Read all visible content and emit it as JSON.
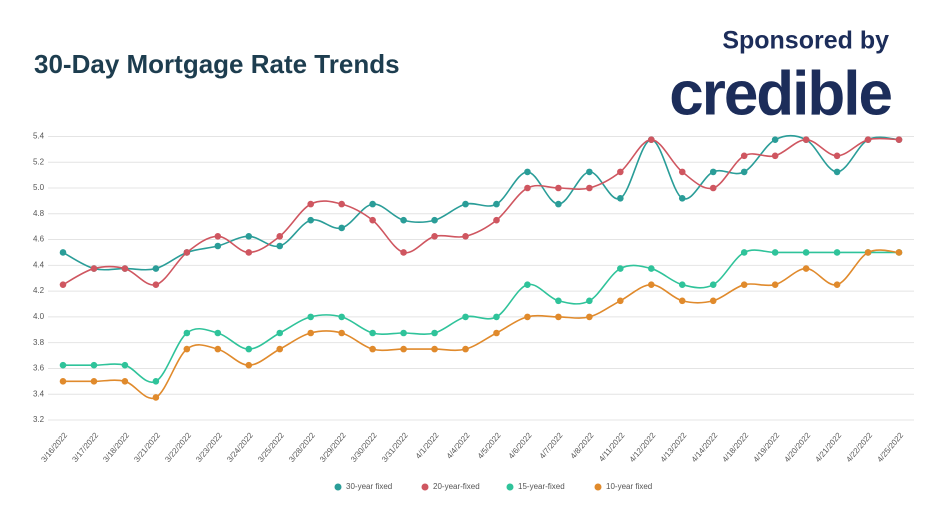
{
  "header": {
    "sponsor": "Sponsored by",
    "brand": "credible"
  },
  "chart_data": {
    "type": "line",
    "title": "30-Day Mortgage Rate Trends",
    "categories": [
      "3/16/2022",
      "3/17/2022",
      "3/18/2022",
      "3/21/2022",
      "3/22/2022",
      "3/23/2022",
      "3/24/2022",
      "3/25/2022",
      "3/28/2022",
      "3/29/2022",
      "3/30/2022",
      "3/31/2022",
      "4/1/2022",
      "4/4/2022",
      "4/5/2022",
      "4/6/2022",
      "4/7/2022",
      "4/8/2022",
      "4/11/2022",
      "4/12/2022",
      "4/13/2022",
      "4/14/2022",
      "4/18/2022",
      "4/19/2022",
      "4/20/2022",
      "4/21/2022",
      "4/22/2022",
      "4/25/2022"
    ],
    "series": [
      {
        "name": "30-year fixed",
        "color": "#2a9d98",
        "values": [
          4.5,
          4.375,
          4.375,
          4.375,
          4.5,
          4.55,
          4.625,
          4.55,
          4.75,
          4.69,
          4.875,
          4.75,
          4.75,
          4.875,
          4.875,
          5.125,
          4.875,
          5.125,
          4.92,
          5.375,
          4.92,
          5.125,
          5.125,
          5.375,
          5.375,
          5.125,
          5.375,
          5.375
        ]
      },
      {
        "name": "20-year-fixed",
        "color": "#cf5660",
        "values": [
          4.25,
          4.375,
          4.375,
          4.25,
          4.5,
          4.625,
          4.5,
          4.625,
          4.875,
          4.875,
          4.75,
          4.5,
          4.625,
          4.625,
          4.75,
          5.0,
          5.0,
          5.0,
          5.125,
          5.375,
          5.125,
          5.0,
          5.25,
          5.25,
          5.375,
          5.25,
          5.375,
          5.375
        ]
      },
      {
        "name": "15-year-fixed",
        "color": "#2fc39a",
        "values": [
          3.625,
          3.625,
          3.625,
          3.5,
          3.875,
          3.875,
          3.75,
          3.875,
          4.0,
          4.0,
          3.875,
          3.875,
          3.875,
          4.0,
          4.0,
          4.25,
          4.125,
          4.125,
          4.375,
          4.375,
          4.25,
          4.25,
          4.5,
          4.5,
          4.5,
          4.5,
          4.5,
          4.5
        ]
      },
      {
        "name": "10-year fixed",
        "color": "#e08a2c",
        "values": [
          3.5,
          3.5,
          3.5,
          3.375,
          3.75,
          3.75,
          3.625,
          3.75,
          3.875,
          3.875,
          3.75,
          3.75,
          3.75,
          3.75,
          3.875,
          4.0,
          4.0,
          4.0,
          4.125,
          4.25,
          4.125,
          4.125,
          4.25,
          4.25,
          4.375,
          4.25,
          4.5,
          4.5
        ]
      }
    ],
    "ylim": [
      3.2,
      5.45
    ],
    "yticks": [
      {
        "value": 3.2,
        "label": "3.2"
      },
      {
        "value": 3.4,
        "label": "3.4"
      },
      {
        "value": 3.6,
        "label": "3.6"
      },
      {
        "value": 3.8,
        "label": "3.8"
      },
      {
        "value": 4.0,
        "label": "4.0"
      },
      {
        "value": 4.2,
        "label": "4.2"
      },
      {
        "value": 4.4,
        "label": "4.4"
      },
      {
        "value": 4.6,
        "label": "4.6"
      },
      {
        "value": 4.8,
        "label": "4.8"
      },
      {
        "value": 5.0,
        "label": "5.0"
      },
      {
        "value": 5.2,
        "label": "5.2"
      },
      {
        "value": 5.4,
        "label": "5.4"
      }
    ],
    "grid": true
  }
}
